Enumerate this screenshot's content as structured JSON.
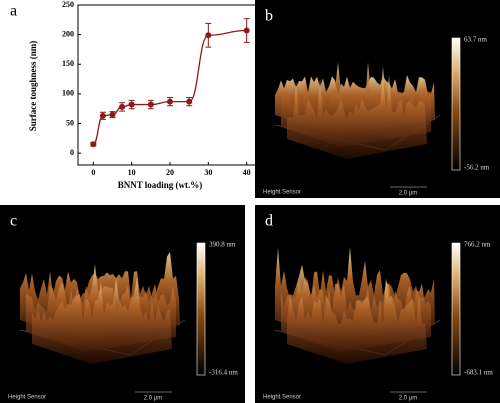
{
  "chart_data": {
    "type": "scatter",
    "panel_label": "a",
    "x_label": "BNNT loading (wt.%)",
    "y_label": "Surface toughness (nm)",
    "x": [
      0,
      2.5,
      5,
      7.5,
      10,
      15,
      20,
      25,
      30,
      40
    ],
    "series": [
      {
        "color": "#8b1a1a",
        "values": [
          15,
          63,
          65,
          78,
          82,
          82,
          87,
          87,
          199,
          207
        ],
        "errors": [
          3,
          6,
          5,
          7,
          7,
          7,
          7,
          7,
          20,
          20
        ]
      }
    ],
    "xlim": [
      -4,
      44
    ],
    "xticks": [
      0,
      10,
      20,
      30,
      40
    ],
    "ylim": [
      -20,
      250
    ],
    "yticks": [
      0,
      50,
      100,
      150,
      200,
      250
    ]
  },
  "afm_panels": [
    {
      "label": "b",
      "max": "63.7 nm",
      "min": "-56.2 nm",
      "sensor": "Height Sensor",
      "scale": "2.0 μm"
    },
    {
      "label": "c",
      "max": "390.8 nm",
      "min": "-316.4 nm",
      "sensor": "Height Sensor",
      "scale": "2.0 μm"
    },
    {
      "label": "d",
      "max": "766.2 nm",
      "min": "-683.1 nm",
      "sensor": "Height Sensor",
      "scale": "2.0 μm"
    }
  ]
}
